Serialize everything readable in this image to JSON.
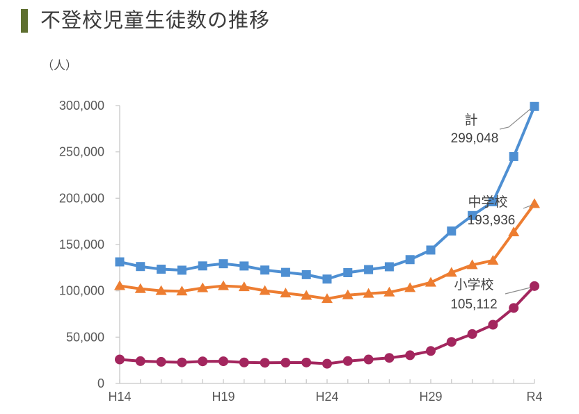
{
  "page": {
    "title": "不登校児童生徒数の推移"
  },
  "chart_data": {
    "type": "line",
    "title": "不登校児童生徒数の推移",
    "unit_label": "（人）",
    "xlabel": "",
    "ylabel": "（人）",
    "grid": false,
    "legend_position": "end-of-line annotations",
    "ylim": [
      0,
      300000
    ],
    "y_tick_step": 50000,
    "y_tick_values": [
      0,
      50000,
      100000,
      150000,
      200000,
      250000,
      300000
    ],
    "x": [
      "H14",
      "H15",
      "H16",
      "H17",
      "H18",
      "H19",
      "H20",
      "H21",
      "H22",
      "H23",
      "H24",
      "H25",
      "H26",
      "H27",
      "H28",
      "H29",
      "H30",
      "R1",
      "R2",
      "R3",
      "R4"
    ],
    "x_tick_indices": [
      0,
      5,
      10,
      15,
      20
    ],
    "x_tick_labels": [
      "H14",
      "H19",
      "H24",
      "H29",
      "R4"
    ],
    "axis_color": "#C8C8C8",
    "tick_label_color": "#595959",
    "annotation_text_color": "#3F3F3F",
    "leader_line_color": "#8C8C8C",
    "series": [
      {
        "name": "計",
        "marker": "square",
        "color": "#4E8FD2",
        "end_label": "299,048",
        "values": [
          131252,
          126226,
          123358,
          122287,
          126894,
          129255,
          126805,
          122432,
          119891,
          117458,
          112689,
          119617,
          122897,
          125991,
          133683,
          144031,
          164528,
          181272,
          196127,
          244940,
          299048
        ]
      },
      {
        "name": "中学校",
        "marker": "triangle",
        "color": "#ED7D31",
        "end_label": "193,936",
        "values": [
          105383,
          102149,
          100040,
          99578,
          103069,
          105328,
          104153,
          100105,
          97428,
          94836,
          91446,
          95442,
          97033,
          98408,
          103235,
          108999,
          119687,
          127922,
          132777,
          163442,
          193936
        ]
      },
      {
        "name": "小学校",
        "marker": "circle",
        "color": "#A3265E",
        "end_label": "105,112",
        "values": [
          25869,
          24077,
          23318,
          22709,
          23825,
          23927,
          22652,
          22327,
          22463,
          22622,
          21243,
          24175,
          25864,
          27583,
          30448,
          35032,
          44841,
          53350,
          63350,
          81498,
          105112
        ]
      }
    ]
  }
}
